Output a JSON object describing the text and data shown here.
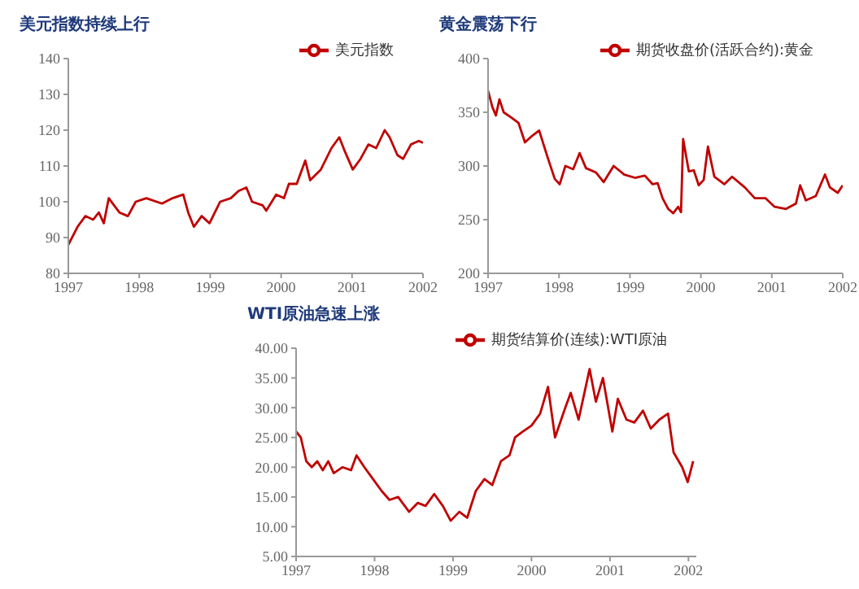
{
  "chart_data": [
    {
      "type": "line",
      "title": "美元指数持续上行",
      "legend": "top right",
      "marker": "none",
      "xlim": [
        1997,
        2002
      ],
      "xticks": [
        1997,
        1998,
        1999,
        2000,
        2001,
        2002
      ],
      "ylim": [
        80,
        140
      ],
      "yticks": [
        80,
        90,
        100,
        110,
        120,
        130,
        140
      ],
      "x": [
        1997,
        1997.13,
        1997.24,
        1997.35,
        1997.43,
        1997.5,
        1997.57,
        1997.72,
        1997.84,
        1997.95,
        1998.1,
        1998.32,
        1998.47,
        1998.62,
        1998.69,
        1998.77,
        1998.88,
        1998.99,
        1999.14,
        1999.29,
        1999.4,
        1999.51,
        1999.59,
        1999.74,
        1999.79,
        1999.93,
        2000.04,
        2000.11,
        2000.22,
        2000.34,
        2000.41,
        2000.56,
        2000.71,
        2000.82,
        2000.9,
        2001.01,
        2001.12,
        2001.23,
        2001.34,
        2001.46,
        2001.53,
        2001.64,
        2001.72,
        2001.83,
        2001.94,
        2002
      ],
      "series": [
        {
          "name": "美元指数",
          "color": "#c00000",
          "values": [
            88,
            93,
            96,
            95,
            97,
            94,
            101,
            97,
            96,
            100,
            101,
            99.5,
            101,
            102,
            97,
            93,
            96,
            94,
            100,
            101,
            103,
            104,
            100,
            99,
            97.5,
            102,
            101,
            105,
            105,
            111.5,
            106,
            109,
            115,
            118,
            114,
            109,
            112,
            116,
            115,
            120,
            118,
            113,
            112,
            116,
            117,
            116.5
          ]
        }
      ]
    },
    {
      "type": "line",
      "title": "黄金震荡下行",
      "legend": "top right",
      "marker": "none",
      "xlim": [
        1997,
        2002
      ],
      "xticks": [
        1997,
        1998,
        1999,
        2000,
        2001,
        2002
      ],
      "ylim": [
        200,
        400
      ],
      "yticks": [
        200,
        250,
        300,
        350,
        400
      ],
      "x": [
        1997,
        1997.06,
        1997.11,
        1997.16,
        1997.22,
        1997.33,
        1997.43,
        1997.52,
        1997.62,
        1997.72,
        1997.83,
        1997.94,
        1998.01,
        1998.09,
        1998.2,
        1998.29,
        1998.38,
        1998.52,
        1998.63,
        1998.77,
        1998.92,
        1999.07,
        1999.21,
        1999.32,
        1999.39,
        1999.46,
        1999.54,
        1999.61,
        1999.68,
        1999.72,
        1999.75,
        1999.83,
        1999.9,
        1999.97,
        2000.04,
        2000.1,
        2000.19,
        2000.33,
        2000.44,
        2000.62,
        2000.76,
        2000.91,
        2001.04,
        2001.2,
        2001.34,
        2001.4,
        2001.48,
        2001.62,
        2001.75,
        2001.82,
        2001.93,
        2002
      ],
      "series": [
        {
          "name": "期货收盘价(活跃合约):黄金",
          "color": "#c00000",
          "values": [
            370,
            355,
            347,
            362,
            350,
            345,
            340,
            322,
            328,
            333,
            310,
            288,
            283,
            300,
            297,
            312,
            298,
            294,
            285,
            300,
            292,
            289,
            291,
            283,
            284,
            270,
            260,
            256,
            262,
            257,
            325,
            295,
            296,
            282,
            287,
            318,
            290,
            283,
            290,
            280,
            270,
            270,
            262,
            260,
            265,
            282,
            268,
            272,
            292,
            280,
            275,
            282
          ]
        }
      ]
    },
    {
      "type": "line",
      "title": "WTI原油急速上涨",
      "legend": "top right",
      "marker": "none",
      "xlim": [
        1997,
        2002.1
      ],
      "xticks": [
        1997,
        1998,
        1999,
        2000,
        2001,
        2002
      ],
      "ylim": [
        5,
        40
      ],
      "yticks": [
        {
          "value": 5,
          "label": "5.00"
        },
        {
          "value": 10,
          "label": "10.00"
        },
        {
          "value": 15,
          "label": "15.00"
        },
        {
          "value": 20,
          "label": "20.00"
        },
        {
          "value": 25,
          "label": "25.00"
        },
        {
          "value": 30,
          "label": "30.00"
        },
        {
          "value": 35,
          "label": "35.00"
        },
        {
          "value": 40,
          "label": "40.00"
        }
      ],
      "x": [
        1997,
        1997.06,
        1997.13,
        1997.2,
        1997.27,
        1997.34,
        1997.41,
        1997.48,
        1997.59,
        1997.7,
        1997.77,
        1997.87,
        1997.98,
        1998.09,
        1998.19,
        1998.3,
        1998.44,
        1998.55,
        1998.65,
        1998.76,
        1998.87,
        1998.97,
        1999.08,
        1999.18,
        1999.29,
        1999.4,
        1999.5,
        1999.61,
        1999.72,
        1999.79,
        1999.89,
        2000,
        2000.11,
        2000.21,
        2000.3,
        2000.43,
        2000.5,
        2000.6,
        2000.74,
        2000.82,
        2000.91,
        2001.03,
        2001.1,
        2001.21,
        2001.31,
        2001.42,
        2001.52,
        2001.63,
        2001.74,
        2001.81,
        2001.92,
        2001.99,
        2002.06
      ],
      "series": [
        {
          "name": "期货结算价(连续):WTI原油",
          "color": "#c00000",
          "values": [
            26,
            25,
            21,
            20,
            21,
            19.5,
            21,
            19,
            20,
            19.5,
            22,
            20,
            18,
            16,
            14.5,
            15,
            12.5,
            14,
            13.5,
            15.5,
            13.5,
            11,
            12.5,
            11.5,
            16,
            18,
            17,
            21,
            22,
            25,
            26,
            27,
            29,
            33.5,
            25,
            30,
            32.5,
            28,
            36.5,
            31,
            35,
            26,
            31.5,
            28,
            27.5,
            29.5,
            26.5,
            28,
            29,
            22.5,
            20,
            17.5,
            21
          ]
        }
      ]
    }
  ]
}
